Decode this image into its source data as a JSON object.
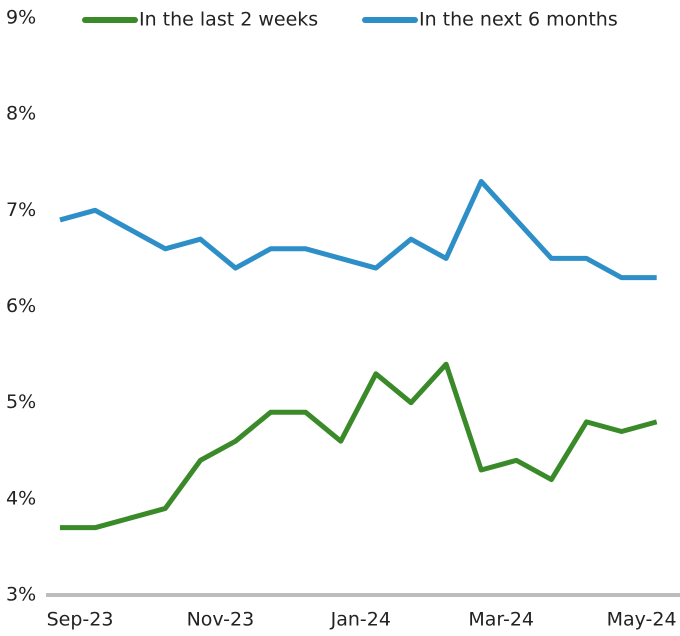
{
  "chart_data": {
    "type": "line",
    "categories": [
      "Sep-23",
      null,
      null,
      null,
      "Nov-23",
      null,
      null,
      null,
      "Jan-24",
      null,
      null,
      null,
      "Mar-24",
      null,
      null,
      null,
      "May-24",
      null
    ],
    "series": [
      {
        "name": "In the last 2 weeks",
        "color": "#3a8a2a",
        "values": [
          3.7,
          3.7,
          3.8,
          3.9,
          4.4,
          4.6,
          4.9,
          4.9,
          4.6,
          5.3,
          5.0,
          5.4,
          4.3,
          4.4,
          4.2,
          4.8,
          4.7,
          4.8
        ]
      },
      {
        "name": "In the next 6 months",
        "color": "#2e8fc8",
        "values": [
          6.9,
          7.0,
          6.8,
          6.6,
          6.7,
          6.4,
          6.6,
          6.6,
          6.5,
          6.4,
          6.7,
          6.5,
          7.3,
          6.9,
          6.5,
          6.5,
          6.3,
          6.3
        ]
      }
    ],
    "ylim": [
      3,
      9
    ],
    "yticks": [
      {
        "value": 3,
        "label": "3%"
      },
      {
        "value": 4,
        "label": "4%"
      },
      {
        "value": 5,
        "label": "5%"
      },
      {
        "value": 6,
        "label": "6%"
      },
      {
        "value": 7,
        "label": "7%"
      },
      {
        "value": 8,
        "label": "8%"
      },
      {
        "value": 9,
        "label": "9%"
      }
    ],
    "grid": false
  }
}
